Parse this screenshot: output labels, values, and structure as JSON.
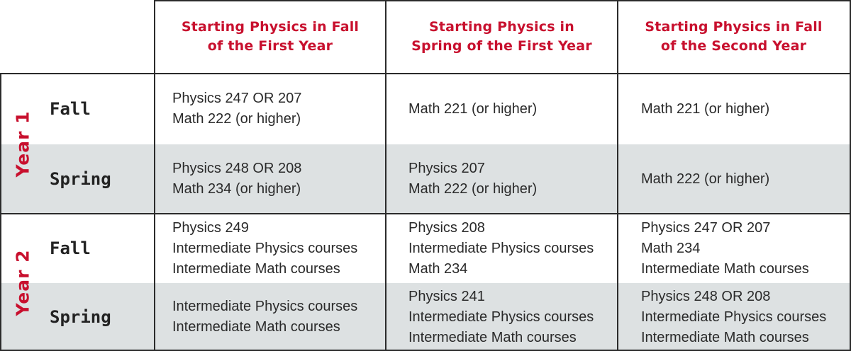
{
  "columns": [
    {
      "line1": "Starting Physics in Fall",
      "line2": "of the First Year"
    },
    {
      "line1": "Starting Physics in",
      "line2": "Spring of the First Year"
    },
    {
      "line1": "Starting Physics in Fall",
      "line2": "of the Second Year"
    }
  ],
  "years": [
    {
      "label": "Year 1",
      "semesters": [
        {
          "label": "Fall",
          "cells": [
            [
              "Physics 247 OR 207",
              "Math 222 (or higher)"
            ],
            [
              "Math 221 (or higher)"
            ],
            [
              "Math 221 (or higher)"
            ]
          ]
        },
        {
          "label": "Spring",
          "cells": [
            [
              "Physics 248 OR 208",
              "Math 234 (or higher)"
            ],
            [
              "Physics 207",
              "Math 222 (or higher)"
            ],
            [
              "Math 222 (or higher)"
            ]
          ]
        }
      ]
    },
    {
      "label": "Year 2",
      "semesters": [
        {
          "label": "Fall",
          "cells": [
            [
              "Physics 249",
              "Intermediate Physics courses",
              "Intermediate Math courses"
            ],
            [
              "Physics 208",
              "Intermediate Physics courses",
              "Math 234"
            ],
            [
              "Physics 247 OR 207",
              "Math 234",
              "Intermediate Math courses"
            ]
          ]
        },
        {
          "label": "Spring",
          "cells": [
            [
              "Intermediate Physics courses",
              "Intermediate Math courses"
            ],
            [
              "Physics 241",
              "Intermediate Physics courses",
              "Intermediate Math courses"
            ],
            [
              "Physics 248 OR 208",
              "Intermediate Physics courses",
              "Intermediate Math courses"
            ]
          ]
        }
      ]
    }
  ],
  "colors": {
    "accent": "#c8102e",
    "band": "#dde1e2",
    "rule": "#2b2b2b"
  }
}
